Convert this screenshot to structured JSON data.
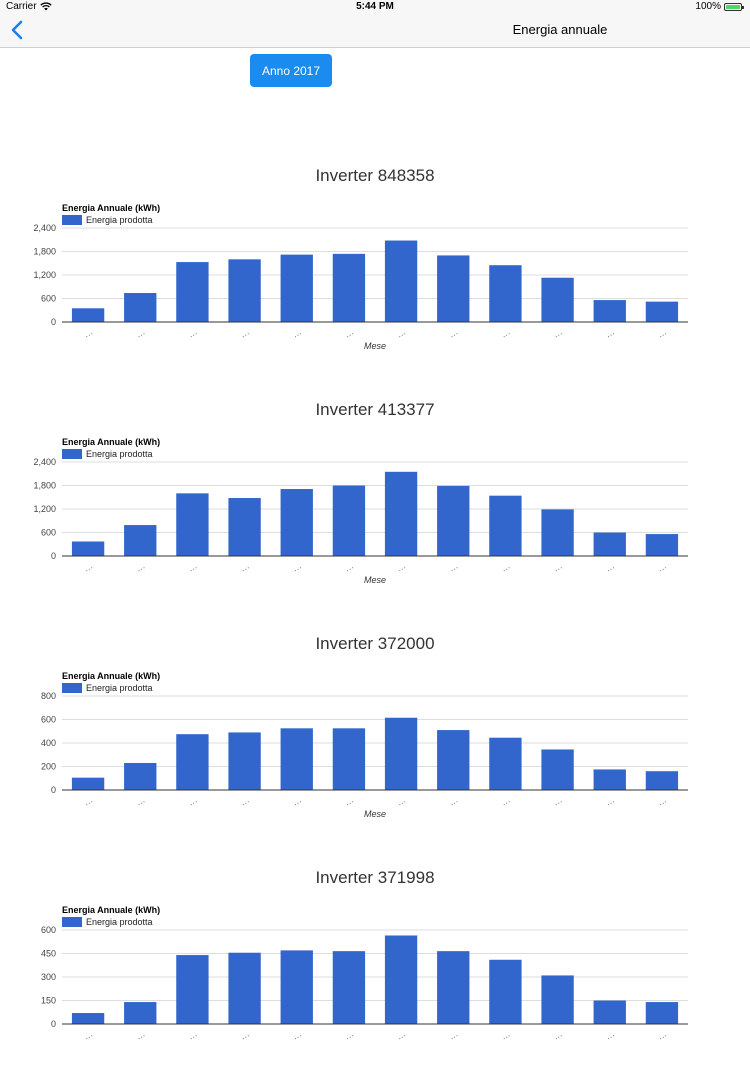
{
  "status_bar": {
    "carrier": "Carrier",
    "time": "5:44 PM",
    "battery": "100%"
  },
  "nav": {
    "title": "Energia annuale"
  },
  "year_button": {
    "label": "Anno 2017"
  },
  "chart_data": [
    {
      "type": "bar",
      "title": "Inverter 848358",
      "subtitle": "Energia Annuale (kWh)",
      "xlabel": "Mese",
      "ylabel": "",
      "legend": "top-left",
      "categories": [
        "…",
        "…",
        "…",
        "…",
        "…",
        "…",
        "…",
        "…",
        "…",
        "…",
        "…",
        "…"
      ],
      "series": [
        {
          "name": "Energia prodotta",
          "values": [
            350,
            740,
            1530,
            1600,
            1720,
            1740,
            2080,
            1700,
            1450,
            1130,
            560,
            520
          ]
        }
      ],
      "yticks": [
        0,
        600,
        1200,
        1800,
        2400
      ],
      "ytick_labels": [
        "0",
        "600",
        "1,200",
        "1,800",
        "2,400"
      ],
      "ylim": [
        0,
        2400
      ],
      "color": "#3366cc"
    },
    {
      "type": "bar",
      "title": "Inverter 413377",
      "subtitle": "Energia Annuale (kWh)",
      "xlabel": "Mese",
      "ylabel": "",
      "legend": "top-left",
      "categories": [
        "…",
        "…",
        "…",
        "…",
        "…",
        "…",
        "…",
        "…",
        "…",
        "…",
        "…",
        "…"
      ],
      "series": [
        {
          "name": "Energia prodotta",
          "values": [
            370,
            790,
            1600,
            1480,
            1710,
            1800,
            2150,
            1790,
            1540,
            1190,
            600,
            560
          ]
        }
      ],
      "yticks": [
        0,
        600,
        1200,
        1800,
        2400
      ],
      "ytick_labels": [
        "0",
        "600",
        "1,200",
        "1,800",
        "2,400"
      ],
      "ylim": [
        0,
        2400
      ],
      "color": "#3366cc"
    },
    {
      "type": "bar",
      "title": "Inverter 372000",
      "subtitle": "Energia Annuale (kWh)",
      "xlabel": "Mese",
      "ylabel": "",
      "legend": "top-left",
      "categories": [
        "…",
        "…",
        "…",
        "…",
        "…",
        "…",
        "…",
        "…",
        "…",
        "…",
        "…",
        "…"
      ],
      "series": [
        {
          "name": "Energia prodotta",
          "values": [
            105,
            230,
            475,
            490,
            525,
            525,
            615,
            510,
            445,
            345,
            175,
            160
          ]
        }
      ],
      "yticks": [
        0,
        200,
        400,
        600,
        800
      ],
      "ytick_labels": [
        "0",
        "200",
        "400",
        "600",
        "800"
      ],
      "ylim": [
        0,
        800
      ],
      "color": "#3366cc"
    },
    {
      "type": "bar",
      "title": "Inverter 371998",
      "subtitle": "Energia Annuale (kWh)",
      "xlabel": "",
      "ylabel": "",
      "legend": "top-left",
      "categories": [
        "…",
        "…",
        "…",
        "…",
        "…",
        "…",
        "…",
        "…",
        "…",
        "…",
        "…",
        "…"
      ],
      "series": [
        {
          "name": "Energia prodotta",
          "values": [
            70,
            140,
            440,
            455,
            470,
            465,
            565,
            465,
            410,
            310,
            150,
            140
          ]
        }
      ],
      "yticks": [
        0,
        150,
        300,
        450,
        600
      ],
      "ytick_labels": [
        "0",
        "150",
        "300",
        "450",
        "600"
      ],
      "ylim": [
        0,
        600
      ],
      "color": "#3366cc"
    }
  ]
}
